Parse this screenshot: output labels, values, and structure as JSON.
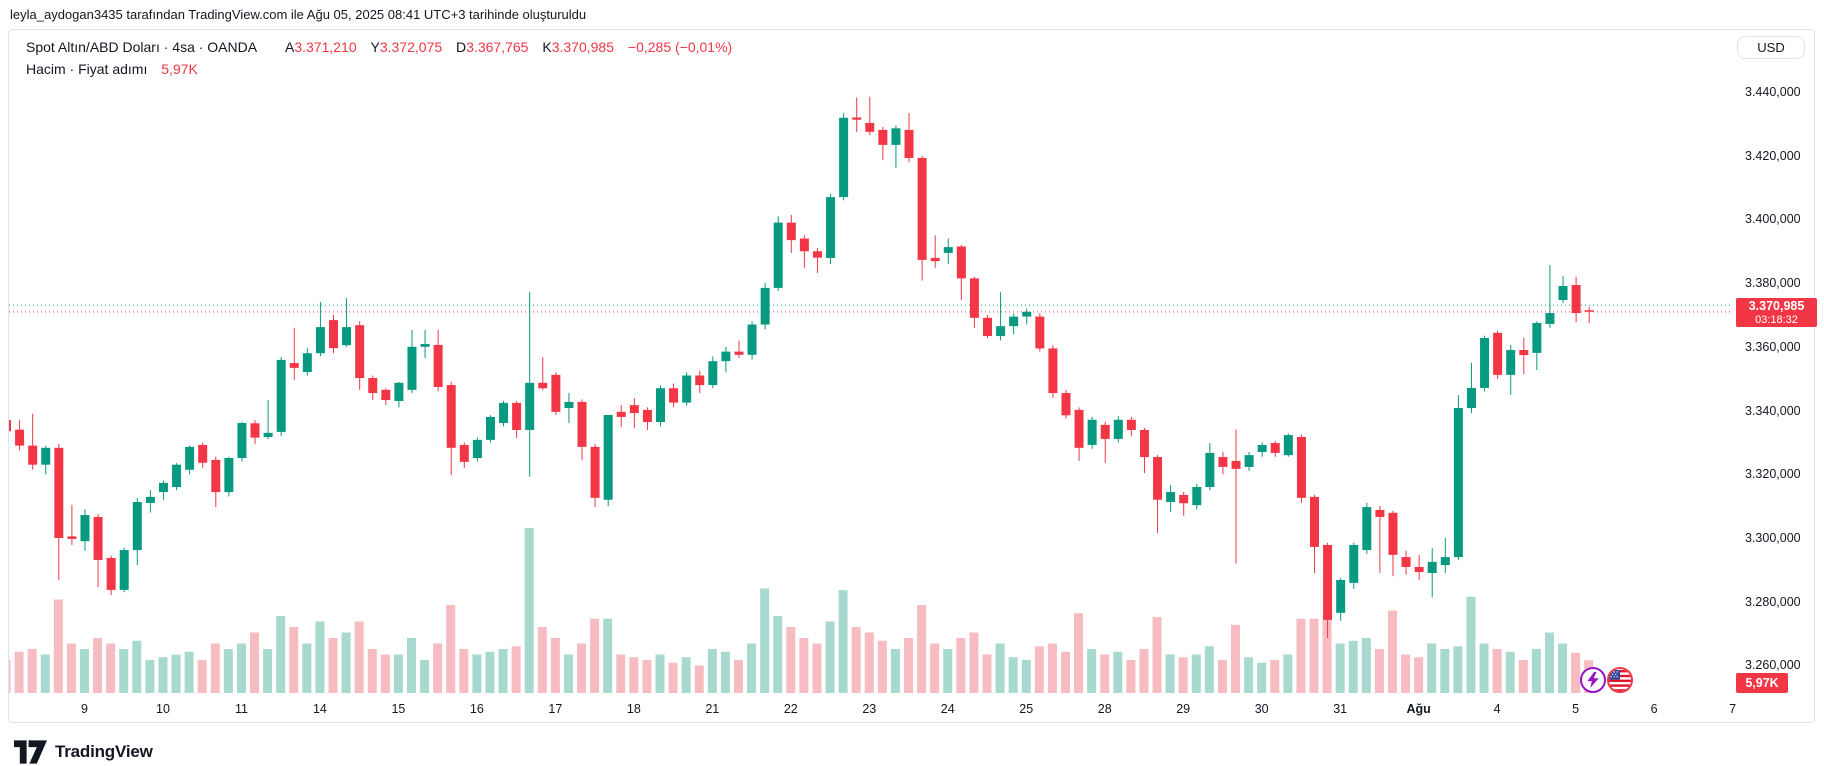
{
  "attribution": "leyla_aydogan3435 tarafından TradingView.com ile Ağu 05, 2025 08:41 UTC+3 tarihinde oluşturuldu",
  "header": {
    "title": "Spot Altın/ABD Doları · 4sa · OANDA",
    "ohlc": [
      {
        "label": "A",
        "value": "3.371,210"
      },
      {
        "label": "Y",
        "value": "3.372,075"
      },
      {
        "label": "D",
        "value": "3.367,765"
      },
      {
        "label": "K",
        "value": "3.370,985"
      }
    ],
    "change": "−0,285 (−0,01%)",
    "row2_label": "Hacim · Fiyat adımı",
    "row2_value": "5,97K"
  },
  "price_scale": {
    "currency": "USD",
    "labels": [
      {
        "text": "3.440,000",
        "value": 3440
      },
      {
        "text": "3.420,000",
        "value": 3420
      },
      {
        "text": "3.400,000",
        "value": 3400
      },
      {
        "text": "3.380,000",
        "value": 3380
      },
      {
        "text": "3.360,000",
        "value": 3360
      },
      {
        "text": "3.340,000",
        "value": 3340
      },
      {
        "text": "3.320,000",
        "value": 3320
      },
      {
        "text": "3.300,000",
        "value": 3300
      },
      {
        "text": "3.280,000",
        "value": 3280
      },
      {
        "text": "3.260,000",
        "value": 3260
      }
    ],
    "price_badge": {
      "price": "3.370,985",
      "countdown": "03:18:32"
    },
    "volume_badge": "5,97K"
  },
  "footer": {
    "logo_text": "TradingView"
  },
  "colors": {
    "up": "#089981",
    "down": "#f23645",
    "vol_up": "#a8d9ce",
    "vol_down": "#f7bcc1",
    "text": "#131722",
    "border": "#e0e3eb"
  },
  "chart_data": {
    "type": "candlestick",
    "title": "Spot Altın/ABD Doları (XAU/USD)",
    "exchange": "OANDA",
    "interval": "4sa (4h)",
    "legend_position": "top-left",
    "grid": false,
    "y_axis": {
      "min": 3260,
      "max": 3440,
      "unit": "USD"
    },
    "current_price": 3370.985,
    "prev_close_line": 3373.1,
    "current_volume_k": 5.97,
    "day_labels": [
      {
        "text": "9",
        "i": 6
      },
      {
        "text": "10",
        "i": 12
      },
      {
        "text": "11",
        "i": 18
      },
      {
        "text": "14",
        "i": 24
      },
      {
        "text": "15",
        "i": 30
      },
      {
        "text": "16",
        "i": 36
      },
      {
        "text": "17",
        "i": 42
      },
      {
        "text": "18",
        "i": 48
      },
      {
        "text": "21",
        "i": 54
      },
      {
        "text": "22",
        "i": 60
      },
      {
        "text": "23",
        "i": 66
      },
      {
        "text": "24",
        "i": 72
      },
      {
        "text": "25",
        "i": 78
      },
      {
        "text": "28",
        "i": 84
      },
      {
        "text": "29",
        "i": 90
      },
      {
        "text": "30",
        "i": 96
      },
      {
        "text": "31",
        "i": 102
      },
      {
        "text": "Ağu",
        "i": 108,
        "bold": true
      },
      {
        "text": "4",
        "i": 114
      },
      {
        "text": "5",
        "i": 120
      },
      {
        "text": "6",
        "i": 126
      },
      {
        "text": "7",
        "i": 132
      }
    ],
    "candles_format": [
      "open",
      "high",
      "low",
      "close",
      "volume_k"
    ],
    "candles": [
      [
        3337,
        3338,
        3330,
        3333.5,
        6
      ],
      [
        3334,
        3337,
        3327.5,
        3329,
        7.5
      ],
      [
        3329,
        3339,
        3321.5,
        3323,
        8
      ],
      [
        3323,
        3329,
        3320,
        3328.3,
        7
      ],
      [
        3328.3,
        3329.5,
        3286.8,
        3300,
        17
      ],
      [
        3300.5,
        3310.4,
        3297.8,
        3299.7,
        9
      ],
      [
        3299,
        3309,
        3296,
        3307.2,
        8
      ],
      [
        3306.6,
        3307.5,
        3284.6,
        3293.1,
        10
      ],
      [
        3293.7,
        3294.5,
        3282.1,
        3283.7,
        9
      ],
      [
        3283.7,
        3297,
        3283,
        3296.2,
        8
      ],
      [
        3296.2,
        3312.6,
        3291.5,
        3311.3,
        9.5
      ],
      [
        3311,
        3315,
        3308,
        3312.9,
        6
      ],
      [
        3314.4,
        3318,
        3312,
        3317.3,
        6.5
      ],
      [
        3316,
        3323.5,
        3315,
        3323,
        7
      ],
      [
        3321.4,
        3329,
        3320,
        3328.6,
        7.5
      ],
      [
        3329.2,
        3330,
        3322,
        3323.6,
        6
      ],
      [
        3324.5,
        3325.5,
        3309.7,
        3314.4,
        9
      ],
      [
        3314.4,
        3325.5,
        3313,
        3325.1,
        8
      ],
      [
        3325.1,
        3336.5,
        3324,
        3336.1,
        9
      ],
      [
        3336,
        3337,
        3329.5,
        3331.5,
        11
      ],
      [
        3331.7,
        3343.3,
        3331,
        3333,
        8
      ],
      [
        3333.3,
        3356.8,
        3332,
        3355.9,
        14
      ],
      [
        3354.9,
        3366,
        3349.6,
        3353.4,
        12
      ],
      [
        3352.1,
        3359.6,
        3351,
        3358,
        9
      ],
      [
        3358,
        3374.1,
        3357,
        3366.2,
        13
      ],
      [
        3368.4,
        3370,
        3358,
        3359.6,
        10
      ],
      [
        3360.5,
        3375.3,
        3360,
        3366.2,
        11
      ],
      [
        3366.8,
        3368,
        3346.5,
        3350.2,
        13
      ],
      [
        3350.2,
        3351,
        3343.3,
        3345.5,
        8
      ],
      [
        3346.5,
        3347,
        3341.7,
        3343.3,
        7
      ],
      [
        3343,
        3349,
        3341,
        3348.7,
        7
      ],
      [
        3346.5,
        3365.3,
        3345.5,
        3360,
        10
      ],
      [
        3360,
        3365.3,
        3356.5,
        3360.9,
        6
      ],
      [
        3360.6,
        3365.3,
        3346,
        3347.4,
        9
      ],
      [
        3348,
        3349,
        3319.8,
        3328.3,
        16
      ],
      [
        3329.2,
        3330,
        3322,
        3323.9,
        8
      ],
      [
        3325.1,
        3331.5,
        3324,
        3330.8,
        7
      ],
      [
        3330.8,
        3338.5,
        3330,
        3338,
        7.5
      ],
      [
        3336.1,
        3343,
        3335,
        3342.4,
        8
      ],
      [
        3342.4,
        3343,
        3331.4,
        3333.9,
        8.5
      ],
      [
        3333.9,
        3377.2,
        3319.2,
        3348.7,
        30
      ],
      [
        3348.7,
        3356.8,
        3346.4,
        3347,
        12
      ],
      [
        3351.2,
        3352,
        3338.6,
        3339.6,
        10
      ],
      [
        3340.8,
        3345.5,
        3336.1,
        3342.7,
        7
      ],
      [
        3342.7,
        3343.5,
        3324.5,
        3328.6,
        9
      ],
      [
        3328.6,
        3329.5,
        3309.7,
        3312.6,
        13.5
      ],
      [
        3312,
        3338.6,
        3310,
        3338.6,
        13.5
      ],
      [
        3339.6,
        3341.7,
        3334.8,
        3338,
        7
      ],
      [
        3341.7,
        3343.9,
        3334.5,
        3339.2,
        6.5
      ],
      [
        3340.2,
        3341,
        3333.9,
        3336.4,
        6
      ],
      [
        3336.4,
        3348,
        3335,
        3347,
        7
      ],
      [
        3347,
        3348.5,
        3341,
        3342.5,
        5.5
      ],
      [
        3342.5,
        3352,
        3341.5,
        3351,
        6.5
      ],
      [
        3351,
        3352.5,
        3345.5,
        3348,
        5
      ],
      [
        3348,
        3357,
        3347,
        3355.5,
        8
      ],
      [
        3355.5,
        3360,
        3352,
        3358.5,
        7.5
      ],
      [
        3358.5,
        3362,
        3356.5,
        3357.5,
        6
      ],
      [
        3357.5,
        3368,
        3356,
        3367,
        9
      ],
      [
        3367,
        3380,
        3365.5,
        3378.5,
        19
      ],
      [
        3378.5,
        3401,
        3377.5,
        3399,
        14
      ],
      [
        3399,
        3401.4,
        3389.5,
        3393.5,
        12
      ],
      [
        3394,
        3395,
        3384.8,
        3390,
        10
      ],
      [
        3390,
        3391,
        3383.2,
        3388,
        9
      ],
      [
        3387.9,
        3408,
        3386,
        3407,
        13
      ],
      [
        3407,
        3433.4,
        3406,
        3431.9,
        18.7
      ],
      [
        3432,
        3438.3,
        3427.4,
        3431.3,
        12
      ],
      [
        3430.3,
        3438.5,
        3426.5,
        3427.5,
        11
      ],
      [
        3428.1,
        3429,
        3418.7,
        3423.4,
        9.5
      ],
      [
        3423.4,
        3429.5,
        3416.1,
        3428.6,
        8
      ],
      [
        3428.1,
        3433.4,
        3418,
        3419.3,
        10
      ],
      [
        3419.3,
        3420,
        3380.8,
        3387.3,
        16
      ],
      [
        3387.9,
        3395,
        3384.8,
        3386.9,
        9
      ],
      [
        3389.5,
        3394,
        3386,
        3391.3,
        8
      ],
      [
        3391.5,
        3392,
        3374.7,
        3381.5,
        10
      ],
      [
        3381.5,
        3382,
        3365.9,
        3369.1,
        11
      ],
      [
        3369.1,
        3370,
        3362.7,
        3363.4,
        7
      ],
      [
        3363.4,
        3377.2,
        3362,
        3366.5,
        9
      ],
      [
        3366.5,
        3370.5,
        3364,
        3369.5,
        6.5
      ],
      [
        3369.5,
        3372,
        3367,
        3371,
        6
      ],
      [
        3369.5,
        3370.5,
        3358.5,
        3359.5,
        8.5
      ],
      [
        3359.5,
        3360.5,
        3344,
        3345.5,
        9
      ],
      [
        3345.5,
        3346.5,
        3337.5,
        3338.5,
        7.5
      ],
      [
        3340.2,
        3341,
        3324.2,
        3328.3,
        14.5
      ],
      [
        3329.2,
        3338,
        3328,
        3337.1,
        8
      ],
      [
        3335.5,
        3336.5,
        3323.6,
        3331.1,
        7
      ],
      [
        3331.1,
        3338.2,
        3330,
        3337.1,
        7.5
      ],
      [
        3337.1,
        3338,
        3332,
        3333.9,
        6
      ],
      [
        3333.9,
        3334.5,
        3320.4,
        3325.4,
        8
      ],
      [
        3325.4,
        3326,
        3301.6,
        3312,
        13.8
      ],
      [
        3311.3,
        3316.6,
        3308.2,
        3314.4,
        7
      ],
      [
        3313.5,
        3314.5,
        3307,
        3310.9,
        6.5
      ],
      [
        3310.3,
        3317,
        3309,
        3316,
        7
      ],
      [
        3316,
        3329.8,
        3315,
        3326.7,
        8.5
      ],
      [
        3325.4,
        3327,
        3320,
        3322.3,
        6
      ],
      [
        3324.2,
        3334,
        3292,
        3321.7,
        12.4
      ],
      [
        3322.3,
        3327,
        3321,
        3326,
        6.5
      ],
      [
        3327,
        3330,
        3325.5,
        3329.2,
        5.5
      ],
      [
        3329.8,
        3330.5,
        3325.5,
        3326.7,
        6
      ],
      [
        3326,
        3332.8,
        3325.5,
        3332.3,
        7
      ],
      [
        3331.7,
        3332.5,
        3311,
        3312.6,
        13.5
      ],
      [
        3312.9,
        3313.5,
        3289,
        3297.2,
        13.5
      ],
      [
        3297.8,
        3298.5,
        3268.6,
        3274.3,
        14
      ],
      [
        3276.5,
        3287.5,
        3274,
        3286.8,
        9
      ],
      [
        3285.9,
        3298.5,
        3284,
        3297.8,
        9.5
      ],
      [
        3296.2,
        3311,
        3295,
        3309.7,
        10
      ],
      [
        3308.8,
        3310,
        3289,
        3306.6,
        8
      ],
      [
        3307.9,
        3308.5,
        3288,
        3294.7,
        15
      ],
      [
        3294,
        3296,
        3288.5,
        3290.9,
        7
      ],
      [
        3290.9,
        3294.7,
        3286.8,
        3289.3,
        6.5
      ],
      [
        3289,
        3296.8,
        3281.4,
        3292.5,
        9
      ],
      [
        3291.5,
        3300,
        3289,
        3294,
        8
      ],
      [
        3294,
        3344.9,
        3293,
        3340.8,
        8.5
      ],
      [
        3340.8,
        3355,
        3339.2,
        3347.1,
        17.5
      ],
      [
        3347.1,
        3363.5,
        3346,
        3362.8,
        9
      ],
      [
        3364.4,
        3365,
        3349.9,
        3351.2,
        8
      ],
      [
        3351.2,
        3360.6,
        3344.9,
        3359,
        7.5
      ],
      [
        3359,
        3362.8,
        3351.5,
        3357.4,
        6
      ],
      [
        3358.1,
        3368,
        3352.7,
        3367.5,
        8
      ],
      [
        3367.2,
        3385.7,
        3366,
        3370.6,
        11
      ],
      [
        3374.7,
        3382.2,
        3373.7,
        3379.1,
        9
      ],
      [
        3379.4,
        3382,
        3367.8,
        3370.6,
        7.3
      ],
      [
        3371.5,
        3372.5,
        3367.4,
        3371,
        5.97
      ]
    ]
  }
}
